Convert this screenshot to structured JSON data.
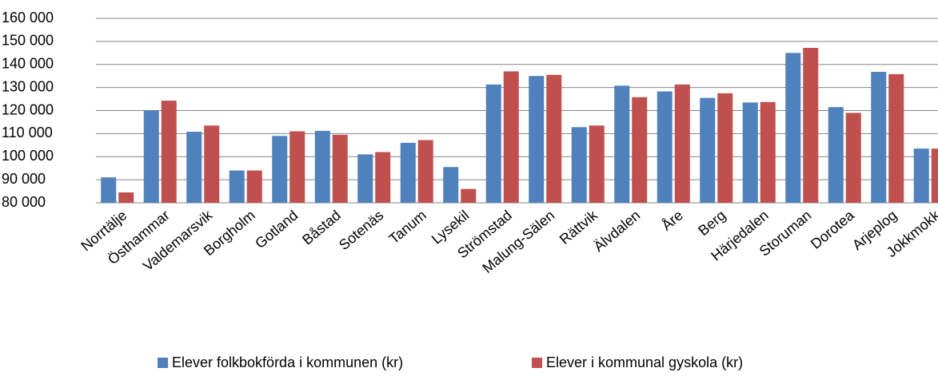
{
  "chart_data": {
    "type": "bar",
    "categories": [
      "Norrtälje",
      "Östhammar",
      "Valdemarsvik",
      "Borgholm",
      "Gotland",
      "Båstad",
      "Sotenäs",
      "Tanum",
      "Lysekil",
      "Strömstad",
      "Malung-Sälen",
      "Rättvik",
      "Älvdalen",
      "Åre",
      "Berg",
      "Härjedalen",
      "Storuman",
      "Dorotea",
      "Arjeplog",
      "Jokkmokk"
    ],
    "series": [
      {
        "name": "Elever folkbokförda i kommunen (kr)",
        "color": "#4f81bd",
        "values": [
          91000,
          120000,
          110800,
          94000,
          109000,
          111200,
          101000,
          106000,
          95500,
          131300,
          135000,
          112800,
          130800,
          128300,
          125500,
          123500,
          145000,
          121500,
          136800,
          103500
        ]
      },
      {
        "name": "Elever i kommunal gyskola (kr)",
        "color": "#c0504d",
        "values": [
          84500,
          124300,
          113500,
          94000,
          111000,
          109500,
          102000,
          107200,
          86000,
          137000,
          135500,
          113500,
          125800,
          131300,
          127500,
          123700,
          147200,
          119000,
          135800,
          103500
        ]
      }
    ],
    "ylim": [
      80000,
      160000
    ],
    "yticks": [
      {
        "value": 80000,
        "label": "80 000"
      },
      {
        "value": 90000,
        "label": "90 000"
      },
      {
        "value": 100000,
        "label": "100 000"
      },
      {
        "value": 110000,
        "label": "110 000"
      },
      {
        "value": 120000,
        "label": "120 000"
      },
      {
        "value": 130000,
        "label": "130 000"
      },
      {
        "value": 140000,
        "label": "140 000"
      },
      {
        "value": 150000,
        "label": "150 000"
      },
      {
        "value": 160000,
        "label": "160 000"
      }
    ],
    "grid": true,
    "legend": "bottom"
  }
}
